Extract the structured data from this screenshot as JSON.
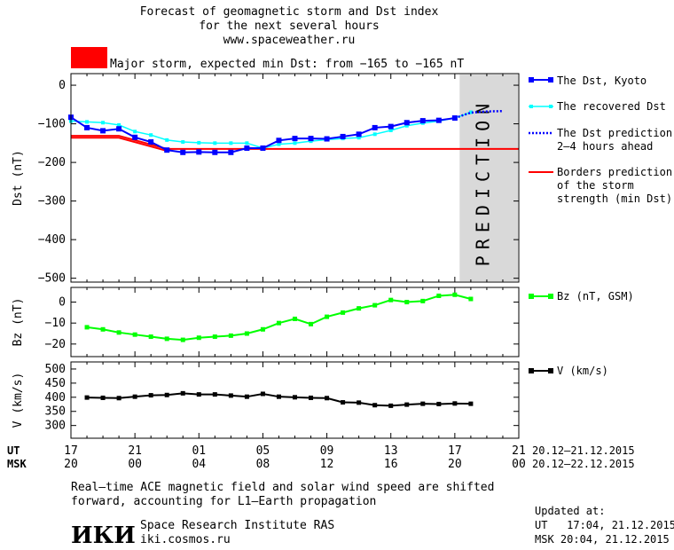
{
  "header": {
    "title_line1": "Forecast of geomagnetic storm and Dst index",
    "title_line2": "for the next several hours",
    "title_line3": "www.spaceweather.ru",
    "storm_text": "Major storm, expected min Dst: from −165 to −165 nT",
    "storm_color": "#ff0000"
  },
  "prediction_label": "PREDICTION",
  "legend": {
    "dst_kyoto": "The Dst, Kyoto",
    "dst_recovered": "The recovered Dst",
    "dst_prediction_1": "The Dst prediction",
    "dst_prediction_2": "2–4 hours ahead",
    "borders_1": "Borders prediction",
    "borders_2": "of the storm",
    "borders_3": "strength (min Dst)",
    "bz": "Bz (nT, GSM)",
    "v": "V (km/s)"
  },
  "axes": {
    "ut_label": "UT",
    "msk_label": "MSK",
    "ut_ticks": [
      "17",
      "21",
      "01",
      "05",
      "09",
      "13",
      "17",
      "21"
    ],
    "msk_ticks": [
      "20",
      "00",
      "04",
      "08",
      "12",
      "16",
      "20",
      "00"
    ],
    "ut_range": "20.12–21.12.2015",
    "msk_range": "20.12–22.12.2015"
  },
  "footer": {
    "note_line1": "Real–time ACE magnetic field and solar wind speed are shifted",
    "note_line2": "forward, accounting for L1–Earth propagation",
    "logo": "ИКИ",
    "institute": "Space Research Institute RAS",
    "site": "iki.cosmos.ru",
    "updated_label": "Updated at:",
    "updated_ut": "UT   17:04, 21.12.2015",
    "updated_msk": "MSK 20:04, 21.12.2015"
  },
  "chart_data": [
    {
      "type": "line",
      "ylabel": "Dst (nT)",
      "ylim": [
        -510,
        30
      ],
      "yticks": [
        0,
        -100,
        -200,
        -300,
        -400,
        -500
      ],
      "xlim_hours": [
        0,
        28
      ],
      "prediction_band_hours": [
        24.3,
        28
      ],
      "series": [
        {
          "name": "The Dst, Kyoto",
          "color": "#0000ff",
          "x": [
            0,
            1,
            2,
            3,
            4,
            5,
            6,
            7,
            8,
            9,
            10,
            11,
            12,
            13,
            14,
            15,
            16,
            17,
            18,
            19,
            20,
            21,
            22,
            23,
            24
          ],
          "y": [
            -83,
            -110,
            -118,
            -113,
            -135,
            -147,
            -168,
            -174,
            -173,
            -174,
            -174,
            -163,
            -163,
            -143,
            -138,
            -138,
            -139,
            -133,
            -127,
            -110,
            -107,
            -97,
            -92,
            -91,
            -85
          ]
        },
        {
          "name": "The recovered Dst",
          "color": "#00ffff",
          "x": [
            0,
            1,
            2,
            3,
            4,
            5,
            6,
            7,
            8,
            9,
            10,
            11,
            12,
            13,
            14,
            15,
            16,
            17,
            18,
            19,
            20,
            21,
            22,
            23,
            24,
            25
          ],
          "y": [
            -93,
            -95,
            -97,
            -103,
            -120,
            -129,
            -142,
            -147,
            -149,
            -150,
            -150,
            -150,
            -163,
            -153,
            -150,
            -145,
            -141,
            -138,
            -136,
            -127,
            -117,
            -105,
            -98,
            -93,
            -85,
            -70
          ]
        },
        {
          "name": "The Dst prediction",
          "color": "#0000ff",
          "x": [
            24,
            25,
            26,
            27
          ],
          "y": [
            -85,
            -71,
            -68,
            -67
          ]
        },
        {
          "name": "Borders prediction",
          "color": "#ff0000",
          "x": [
            0,
            3,
            6,
            28
          ],
          "y": [
            -131,
            -131,
            -165,
            -165
          ]
        },
        {
          "color": "#ff0000",
          "x": [
            0,
            3,
            6
          ],
          "y": [
            -136,
            -136,
            -170
          ]
        }
      ]
    },
    {
      "type": "line",
      "ylabel": "Bz (nT)",
      "ylim": [
        -26,
        7
      ],
      "yticks": [
        0,
        -10,
        -20
      ],
      "series": [
        {
          "name": "Bz (nT, GSM)",
          "color": "#00ff00",
          "x": [
            1,
            2,
            3,
            4,
            5,
            6,
            7,
            8,
            9,
            10,
            11,
            12,
            13,
            14,
            15,
            16,
            17,
            18,
            19,
            20,
            21,
            22,
            23,
            24,
            25
          ],
          "y": [
            -12,
            -13,
            -14.5,
            -15.5,
            -16.5,
            -17.5,
            -18,
            -17,
            -16.5,
            -16,
            -15,
            -13,
            -10,
            -8,
            -10.5,
            -7,
            -5,
            -3,
            -1.5,
            1,
            0,
            0.5,
            3,
            3.5,
            1.5
          ]
        }
      ]
    },
    {
      "type": "line",
      "ylabel": "V (km/s)",
      "ylim": [
        255,
        525
      ],
      "yticks": [
        500,
        450,
        400,
        350,
        300
      ],
      "series": [
        {
          "name": "V (km/s)",
          "color": "#000000",
          "x": [
            1,
            2,
            3,
            4,
            5,
            6,
            7,
            8,
            9,
            10,
            11,
            12,
            13,
            14,
            15,
            16,
            17,
            18,
            19,
            20,
            21,
            22,
            23,
            24,
            25
          ],
          "y": [
            399,
            398,
            397,
            402,
            407,
            408,
            414,
            410,
            410,
            406,
            402,
            412,
            402,
            400,
            398,
            397,
            382,
            381,
            372,
            370,
            374,
            377,
            376,
            378,
            377
          ]
        }
      ]
    }
  ]
}
